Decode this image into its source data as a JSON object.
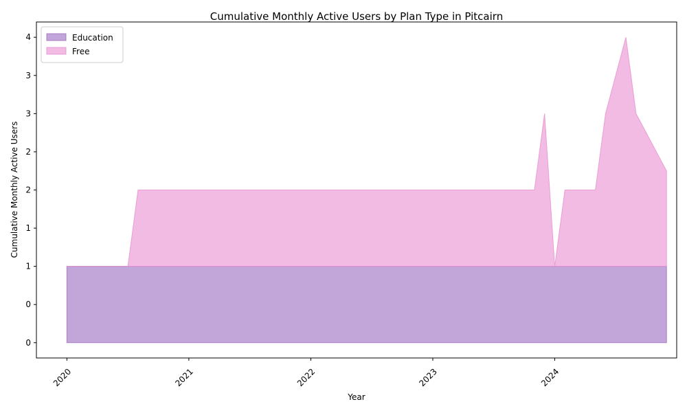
{
  "chart_data": {
    "type": "area",
    "stacked": true,
    "title": "Cumulative Monthly Active Users by Plan Type in Pitcairn",
    "xlabel": "Year",
    "ylabel": "Cumulative Monthly Active Users",
    "x_ticks": [
      "2020",
      "2021",
      "2022",
      "2023",
      "2024"
    ],
    "y_ticks": [
      0.0,
      0.5,
      1.0,
      1.5,
      2.0,
      2.5,
      3.0,
      3.5,
      4.0
    ],
    "y_tick_labels": [
      "0",
      "0",
      "1",
      "1",
      "2",
      "2",
      "3",
      "3",
      "4"
    ],
    "ylim": [
      -0.2,
      4.2
    ],
    "xlim": [
      "2019-10",
      "2025-01"
    ],
    "grid": false,
    "legend_position": "top-left",
    "x": [
      "2020-01",
      "2020-02",
      "2020-03",
      "2020-04",
      "2020-05",
      "2020-06",
      "2020-07",
      "2020-08",
      "2020-09",
      "2020-10",
      "2020-11",
      "2020-12",
      "2021-01",
      "2021-02",
      "2021-03",
      "2021-04",
      "2021-05",
      "2021-06",
      "2021-07",
      "2021-08",
      "2021-09",
      "2021-10",
      "2021-11",
      "2021-12",
      "2022-01",
      "2022-02",
      "2022-03",
      "2022-04",
      "2022-05",
      "2022-06",
      "2022-07",
      "2022-08",
      "2022-09",
      "2022-10",
      "2022-11",
      "2022-12",
      "2023-01",
      "2023-02",
      "2023-03",
      "2023-04",
      "2023-05",
      "2023-06",
      "2023-07",
      "2023-08",
      "2023-09",
      "2023-10",
      "2023-11",
      "2023-12",
      "2024-01",
      "2024-02",
      "2024-03",
      "2024-04",
      "2024-05",
      "2024-06",
      "2024-07",
      "2024-08",
      "2024-09",
      "2024-10",
      "2024-11",
      "2024-12"
    ],
    "series": [
      {
        "name": "Education",
        "color": "#9b6bbf",
        "values": [
          1,
          1,
          1,
          1,
          1,
          1,
          1,
          1,
          1,
          1,
          1,
          1,
          1,
          1,
          1,
          1,
          1,
          1,
          1,
          1,
          1,
          1,
          1,
          1,
          1,
          1,
          1,
          1,
          1,
          1,
          1,
          1,
          1,
          1,
          1,
          1,
          1,
          1,
          1,
          1,
          1,
          1,
          1,
          1,
          1,
          1,
          1,
          1,
          1,
          1,
          1,
          1,
          1,
          1,
          1,
          1,
          1,
          1,
          1,
          1
        ]
      },
      {
        "name": "Free",
        "color": "#e88ed0",
        "values": [
          0,
          0,
          0,
          0,
          0,
          0,
          0,
          1,
          1,
          1,
          1,
          1,
          1,
          1,
          1,
          1,
          1,
          1,
          1,
          1,
          1,
          1,
          1,
          1,
          1,
          1,
          1,
          1,
          1,
          1,
          1,
          1,
          1,
          1,
          1,
          1,
          1,
          1,
          1,
          1,
          1,
          1,
          1,
          1,
          1,
          1,
          1,
          2,
          0,
          1,
          1,
          1,
          1,
          2,
          2.5,
          3,
          2,
          1.75,
          1.5,
          1.25
        ]
      }
    ]
  }
}
